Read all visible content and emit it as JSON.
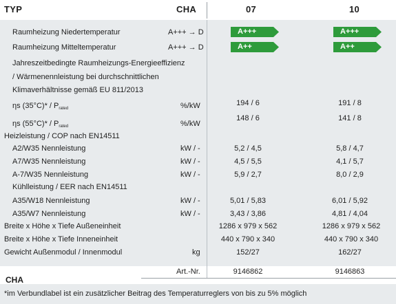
{
  "header": {
    "typ": "TYP",
    "cha": "CHA",
    "col07": "07",
    "col10": "10"
  },
  "rows": {
    "r1_label": "Raumheizung Niedertemperatur",
    "r1_scale": "A+++ → D",
    "r1_07": "A+++",
    "r1_10": "A+++",
    "r2_label": "Raumheizung Mitteltemperatur",
    "r2_scale": "A+++ → D",
    "r2_07": "A++",
    "r2_10": "A++",
    "desc1": "Jahreszeitbedingte Raumheizungs-Energieeffizienz",
    "desc2": "/ Wärmenennleistung bei durchschnittlichen",
    "desc3": "Klimaverhältnisse gemäß EU 811/2013",
    "eta35_label": "ηs (35°C)* / P",
    "eta35_sub": "rated",
    "eta35_unit": "%/kW",
    "eta35_07": "194 / 6",
    "eta35_10": "191 / 8",
    "eta55_label": "ηs (55°C)* / P",
    "eta55_sub": "rated",
    "eta55_unit": "%/kW",
    "eta55_07": "148 / 6",
    "eta55_10": "141 / 8",
    "heiz_title": "Heizleistung / COP nach EN14511",
    "a2_label": "A2/W35 Nennleistung",
    "a2_unit": "kW / -",
    "a2_07": "5,2 / 4,5",
    "a2_10": "5,8 / 4,7",
    "a7_label": "A7/W35 Nennleistung",
    "a7_unit": "kW / -",
    "a7_07": "4,5 / 5,5",
    "a7_10": "4,1 / 5,7",
    "am7_label": "A-7/W35 Nennleistung",
    "am7_unit": "kW / -",
    "am7_07": "5,9 / 2,7",
    "am7_10": "8,0 / 2,9",
    "kuehl_title": "Kühlleistung / EER nach EN14511",
    "a35w18_label": "A35/W18 Nennleistung",
    "a35w18_unit": "kW / -",
    "a35w18_07": "5,01 / 5,83",
    "a35w18_10": "6,01 / 5,92",
    "a35w7_label": "A35/W7 Nennleistung",
    "a35w7_unit": "kW / -",
    "a35w7_07": "3,43 / 3,86",
    "a35w7_10": "4,81 / 4,04",
    "aussen_label": "Breite x Höhe x Tiefe Außeneinheit",
    "aussen_07": "1286 x 979 x 562",
    "aussen_10": "1286 x 979 x 562",
    "innen_label": "Breite x Höhe x Tiefe Inneneinheit",
    "innen_07": "440 x 790 x 340",
    "innen_10": "440 x 790 x 340",
    "gewicht_label": "Gewicht Außenmodul / Innenmodul",
    "gewicht_unit": "kg",
    "gewicht_07": "152/27",
    "gewicht_10": "162/27"
  },
  "footer": {
    "cha": "CHA",
    "artnr_label": "Art.-Nr.",
    "artnr_07": "9146862",
    "artnr_10": "9146863",
    "note": "*im Verbundlabel ist ein zusätzlicher Beitrag des Temperaturreglers von bis zu 5% möglich"
  },
  "colors": {
    "badge_green": "#2e9b3b",
    "background_grey": "#e8ebed"
  }
}
